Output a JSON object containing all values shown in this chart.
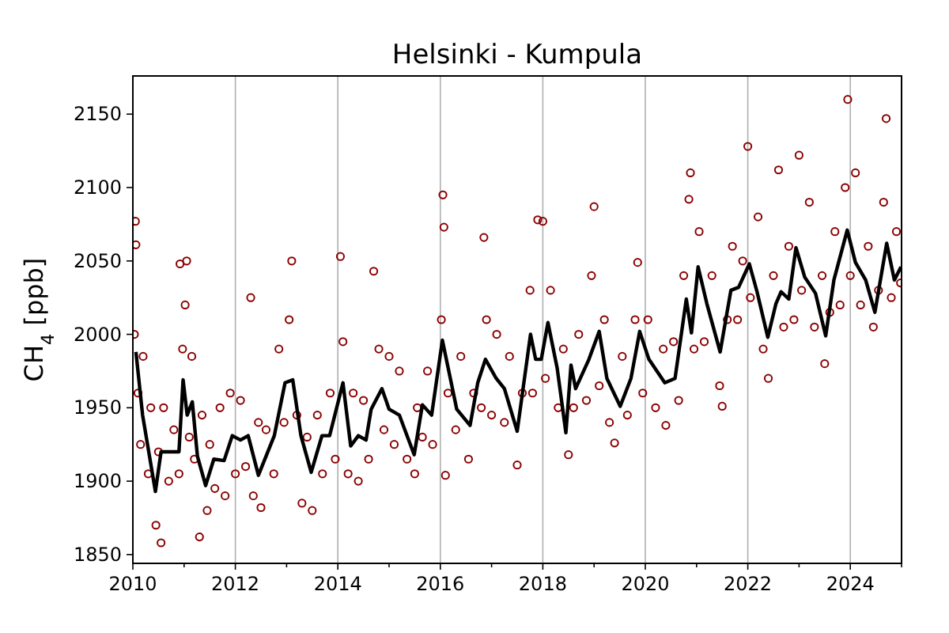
{
  "chart_data": {
    "type": "scatter",
    "title": "Helsinki - Kumpula",
    "ylabel": "CH$_{4}$ [ppb]",
    "xlim": [
      2010,
      2025
    ],
    "ylim": [
      1844,
      2176
    ],
    "xticks": [
      2010,
      {
        "value": 2011,
        "label": null
      },
      2012,
      {
        "value": 2013,
        "label": null
      },
      2014,
      {
        "value": 2015,
        "label": null
      },
      2016,
      {
        "value": 2017,
        "label": null
      },
      2018,
      {
        "value": 2019,
        "label": null
      },
      2020,
      {
        "value": 2021,
        "label": null
      },
      2022,
      {
        "value": 2023,
        "label": null
      },
      2024,
      {
        "value": 2025,
        "label": null
      }
    ],
    "yticks": [
      1850,
      1900,
      1950,
      2000,
      2050,
      2100,
      2150
    ],
    "grid": "x",
    "series": [
      {
        "marker": "circle",
        "color": "#8b0000",
        "x": [
          2010.03,
          2010.05,
          2010.06,
          2010.1,
          2010.15,
          2010.2,
          2010.3,
          2010.35,
          2010.45,
          2010.5,
          2010.55,
          2010.6,
          2010.7,
          2010.8,
          2010.9,
          2010.92,
          2010.97,
          2011.02,
          2011.05,
          2011.1,
          2011.15,
          2011.2,
          2011.3,
          2011.35,
          2011.45,
          2011.5,
          2011.6,
          2011.7,
          2011.8,
          2011.9,
          2012.0,
          2012.1,
          2012.2,
          2012.3,
          2012.35,
          2012.45,
          2012.5,
          2012.6,
          2012.75,
          2012.85,
          2012.95,
          2013.05,
          2013.1,
          2013.2,
          2013.3,
          2013.4,
          2013.5,
          2013.6,
          2013.7,
          2013.85,
          2013.95,
          2014.05,
          2014.1,
          2014.2,
          2014.3,
          2014.4,
          2014.5,
          2014.6,
          2014.7,
          2014.8,
          2014.9,
          2015.0,
          2015.1,
          2015.2,
          2015.35,
          2015.5,
          2015.55,
          2015.65,
          2015.75,
          2015.85,
          2016.02,
          2016.05,
          2016.07,
          2016.1,
          2016.15,
          2016.3,
          2016.4,
          2016.55,
          2016.65,
          2016.8,
          2016.85,
          2016.9,
          2017.0,
          2017.1,
          2017.25,
          2017.35,
          2017.5,
          2017.6,
          2017.75,
          2017.8,
          2017.9,
          2018.0,
          2018.05,
          2018.15,
          2018.3,
          2018.4,
          2018.5,
          2018.6,
          2018.7,
          2018.85,
          2018.95,
          2019.0,
          2019.1,
          2019.2,
          2019.3,
          2019.4,
          2019.55,
          2019.65,
          2019.8,
          2019.85,
          2019.95,
          2020.05,
          2020.2,
          2020.35,
          2020.4,
          2020.55,
          2020.65,
          2020.75,
          2020.85,
          2020.88,
          2020.95,
          2021.05,
          2021.15,
          2021.3,
          2021.45,
          2021.5,
          2021.6,
          2021.7,
          2021.8,
          2021.9,
          2022.0,
          2022.05,
          2022.2,
          2022.3,
          2022.4,
          2022.5,
          2022.6,
          2022.7,
          2022.8,
          2022.9,
          2023.0,
          2023.05,
          2023.2,
          2023.3,
          2023.45,
          2023.5,
          2023.6,
          2023.7,
          2023.8,
          2023.9,
          2023.95,
          2024.0,
          2024.1,
          2024.2,
          2024.35,
          2024.45,
          2024.55,
          2024.65,
          2024.7,
          2024.8,
          2024.9,
          2024.98
        ],
        "values": [
          2000,
          2077,
          2061,
          1960,
          1925,
          1985,
          1905,
          1950,
          1870,
          1920,
          1858,
          1950,
          1900,
          1935,
          1905,
          2048,
          1990,
          2020,
          2050,
          1930,
          1985,
          1915,
          1862,
          1945,
          1880,
          1925,
          1895,
          1950,
          1890,
          1960,
          1905,
          1955,
          1910,
          2025,
          1890,
          1940,
          1882,
          1935,
          1905,
          1990,
          1940,
          2010,
          2050,
          1945,
          1885,
          1930,
          1880,
          1945,
          1905,
          1960,
          1915,
          2053,
          1995,
          1905,
          1960,
          1900,
          1955,
          1915,
          2043,
          1990,
          1935,
          1985,
          1925,
          1975,
          1915,
          1905,
          1950,
          1930,
          1975,
          1925,
          2010,
          2095,
          2073,
          1904,
          1960,
          1935,
          1985,
          1915,
          1960,
          1950,
          2066,
          2010,
          1945,
          2000,
          1940,
          1985,
          1911,
          1960,
          2030,
          1960,
          2078,
          2077,
          1970,
          2030,
          1950,
          1990,
          1918,
          1950,
          2000,
          1955,
          2040,
          2087,
          1965,
          2010,
          1940,
          1926,
          1985,
          1945,
          2010,
          2049,
          1960,
          2010,
          1950,
          1990,
          1938,
          1995,
          1955,
          2040,
          2092,
          2110,
          1990,
          2070,
          1995,
          2040,
          1965,
          1951,
          2010,
          2060,
          2010,
          2050,
          2128,
          2025,
          2080,
          1990,
          1970,
          2040,
          2112,
          2005,
          2060,
          2010,
          2122,
          2030,
          2090,
          2005,
          2040,
          1980,
          2015,
          2070,
          2020,
          2100,
          2160,
          2040,
          2110,
          2020,
          2060,
          2005,
          2030,
          2090,
          2147,
          2025,
          2070,
          2035
        ]
      },
      {
        "type": "line",
        "color": "#000000",
        "x": [
          2010.06,
          2010.19,
          2010.44,
          2010.55,
          2010.9,
          2010.98,
          2011.06,
          2011.16,
          2011.26,
          2011.42,
          2011.58,
          2011.78,
          2011.94,
          2012.1,
          2012.25,
          2012.45,
          2012.76,
          2012.97,
          2013.12,
          2013.28,
          2013.48,
          2013.69,
          2013.84,
          2014.1,
          2014.25,
          2014.4,
          2014.55,
          2014.65,
          2014.86,
          2015.0,
          2015.2,
          2015.49,
          2015.65,
          2015.83,
          2016.04,
          2016.32,
          2016.58,
          2016.73,
          2016.88,
          2017.09,
          2017.25,
          2017.5,
          2017.76,
          2017.86,
          2017.97,
          2018.1,
          2018.28,
          2018.45,
          2018.55,
          2018.64,
          2018.9,
          2019.1,
          2019.25,
          2019.51,
          2019.72,
          2019.89,
          2020.07,
          2020.38,
          2020.58,
          2020.8,
          2020.9,
          2021.03,
          2021.2,
          2021.46,
          2021.67,
          2021.82,
          2022.03,
          2022.18,
          2022.39,
          2022.55,
          2022.65,
          2022.8,
          2022.94,
          2023.11,
          2023.32,
          2023.52,
          2023.68,
          2023.94,
          2024.1,
          2024.3,
          2024.48,
          2024.71,
          2024.86,
          2024.99
        ],
        "values": [
          1988,
          1945,
          1893,
          1920,
          1920,
          1969,
          1945,
          1954,
          1917,
          1897,
          1915,
          1914,
          1931,
          1928,
          1931,
          1904,
          1931,
          1967,
          1969,
          1931,
          1906,
          1931,
          1931,
          1967,
          1924,
          1931,
          1928,
          1949,
          1963,
          1949,
          1945,
          1918,
          1952,
          1945,
          1996,
          1949,
          1938,
          1967,
          1983,
          1970,
          1963,
          1934,
          2000,
          1983,
          1983,
          2008,
          1977,
          1933,
          1979,
          1963,
          1983,
          2002,
          1970,
          1951,
          1970,
          2002,
          1983,
          1967,
          1970,
          2024,
          2001,
          2046,
          2021,
          1988,
          2030,
          2032,
          2048,
          2029,
          1998,
          2021,
          2029,
          2024,
          2059,
          2039,
          2028,
          1999,
          2037,
          2071,
          2049,
          2037,
          2015,
          2062,
          2037,
          2046
        ]
      }
    ]
  }
}
